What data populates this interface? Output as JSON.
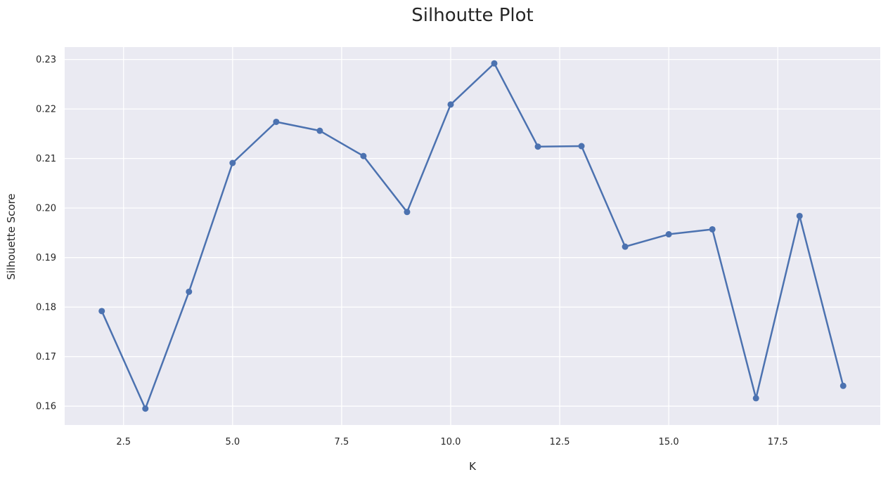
{
  "chart_data": {
    "type": "line",
    "title": "Silhoutte Plot",
    "xlabel": "K",
    "ylabel": "Silhouette Score",
    "xlim": [
      1.15,
      19.85
    ],
    "ylim": [
      0.1562,
      0.2325
    ],
    "xticks": [
      2.5,
      5.0,
      7.5,
      10.0,
      12.5,
      15.0,
      17.5
    ],
    "xtick_labels": [
      "2.5",
      "5.0",
      "7.5",
      "10.0",
      "12.5",
      "15.0",
      "17.5"
    ],
    "yticks": [
      0.16,
      0.17,
      0.18,
      0.19,
      0.2,
      0.21,
      0.22,
      0.23
    ],
    "ytick_labels": [
      "0.16",
      "0.17",
      "0.18",
      "0.19",
      "0.20",
      "0.21",
      "0.22",
      "0.23"
    ],
    "grid": true,
    "x": [
      2,
      3,
      4,
      5,
      6,
      7,
      8,
      9,
      10,
      11,
      12,
      13,
      14,
      15,
      16,
      17,
      18,
      19
    ],
    "series": [
      {
        "values": [
          0.1792,
          0.1595,
          0.1831,
          0.2091,
          0.2174,
          0.2156,
          0.2105,
          0.1992,
          0.2209,
          0.2292,
          0.2124,
          0.2125,
          0.1922,
          0.1947,
          0.1957,
          0.1616,
          0.1984,
          0.1641
        ],
        "color": "#4c72b0"
      }
    ],
    "background_color": "#eaeaf2",
    "grid_color": "#ffffff"
  }
}
